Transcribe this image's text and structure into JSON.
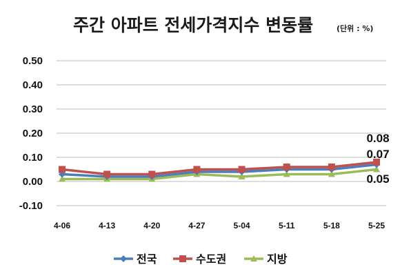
{
  "chart_data": {
    "type": "line",
    "title": "주간 아파트 전세가격지수 변동률",
    "unit_note": "(단위 : %)",
    "xlabel": "",
    "ylabel": "",
    "categories": [
      "4-06",
      "4-13",
      "4-20",
      "4-27",
      "5-04",
      "5-11",
      "5-18",
      "5-25"
    ],
    "ylim": [
      -0.1,
      0.5
    ],
    "yticks": [
      "0.50",
      "0.40",
      "0.30",
      "0.20",
      "0.10",
      "0.00",
      "-0.10"
    ],
    "ytick_values": [
      0.5,
      0.4,
      0.3,
      0.2,
      0.1,
      0.0,
      -0.1
    ],
    "grid": true,
    "legend_position": "bottom",
    "series": [
      {
        "name": "전국",
        "color": "#4a7ebb",
        "marker": "diamond",
        "values": [
          0.03,
          0.02,
          0.02,
          0.04,
          0.04,
          0.05,
          0.05,
          0.07
        ]
      },
      {
        "name": "수도권",
        "color": "#c0504d",
        "marker": "square",
        "values": [
          0.05,
          0.03,
          0.03,
          0.05,
          0.05,
          0.06,
          0.06,
          0.08
        ]
      },
      {
        "name": "지방",
        "color": "#9bbb59",
        "marker": "triangle",
        "values": [
          0.01,
          0.01,
          0.01,
          0.03,
          0.02,
          0.03,
          0.03,
          0.05
        ]
      }
    ],
    "data_labels": [
      {
        "text": "0.08",
        "series": 1,
        "index": 7
      },
      {
        "text": "0.07",
        "series": 0,
        "index": 7
      },
      {
        "text": "0.05",
        "series": 2,
        "index": 7
      }
    ]
  }
}
